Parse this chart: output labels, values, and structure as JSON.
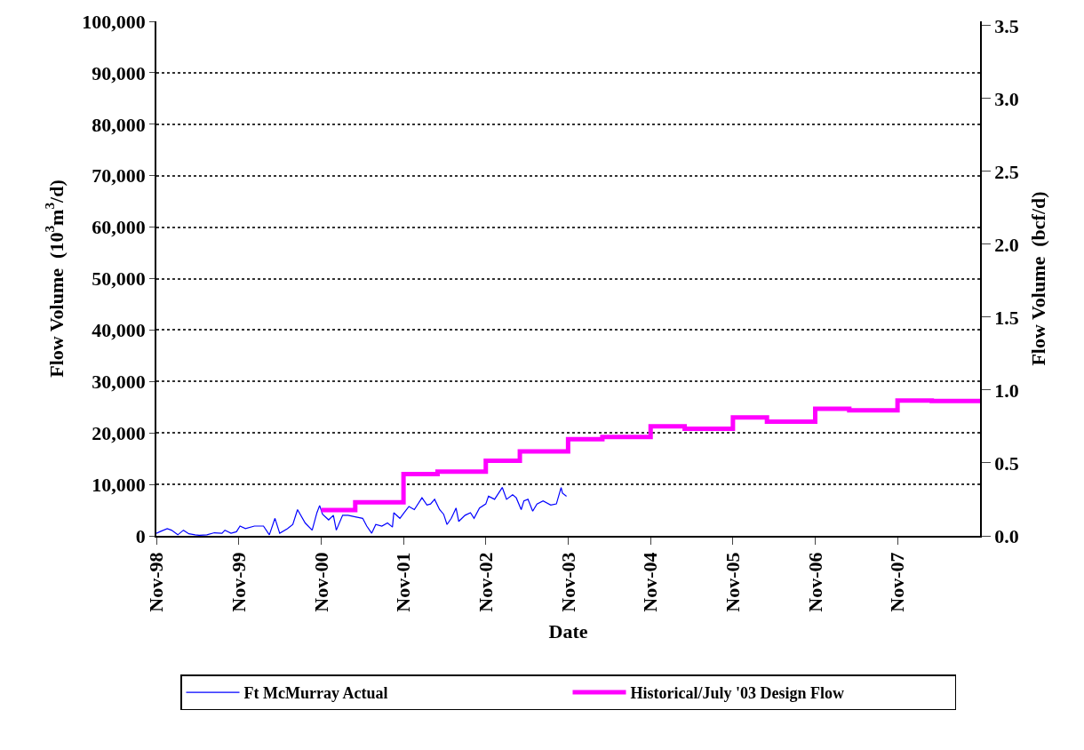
{
  "chart_data": {
    "type": "line",
    "xlabel": "Date",
    "ylabel": "Flow Volume  (10$^{3}$m$^{3}$/d)",
    "y2label": "Flow Volume  (bcf/d)",
    "xlim": [
      "1998-11-01",
      "2008-11-01"
    ],
    "xticks": [
      {
        "value": "1998-11-01",
        "label": "Nov-98"
      },
      {
        "value": "1999-11-01",
        "label": "Nov-99"
      },
      {
        "value": "2000-11-01",
        "label": "Nov-00"
      },
      {
        "value": "2001-11-01",
        "label": "Nov-01"
      },
      {
        "value": "2002-11-01",
        "label": "Nov-02"
      },
      {
        "value": "2003-11-01",
        "label": "Nov-03"
      },
      {
        "value": "2004-11-01",
        "label": "Nov-04"
      },
      {
        "value": "2005-11-01",
        "label": "Nov-05"
      },
      {
        "value": "2006-11-01",
        "label": "Nov-06"
      },
      {
        "value": "2007-11-01",
        "label": "Nov-07"
      }
    ],
    "ylim": [
      0,
      100000
    ],
    "yticks": [
      0,
      {
        "value": 10000,
        "label": "10,000"
      },
      {
        "value": 20000,
        "label": "20,000"
      },
      {
        "value": 30000,
        "label": "30,000"
      },
      {
        "value": 40000,
        "label": "40,000"
      },
      {
        "value": 50000,
        "label": "50,000"
      },
      {
        "value": 60000,
        "label": "60,000"
      },
      {
        "value": 70000,
        "label": "70,000"
      },
      {
        "value": 80000,
        "label": "80,000"
      },
      {
        "value": 90000,
        "label": "90,000"
      },
      {
        "value": 100000,
        "label": "100,000"
      }
    ],
    "y2lim": [
      0,
      3.53
    ],
    "y2ticks": [
      {
        "value": 0,
        "label": "0.0"
      },
      {
        "value": 0.5,
        "label": "0.5"
      },
      {
        "value": 1,
        "label": "1.0"
      },
      {
        "value": 1.5,
        "label": "1.5"
      },
      {
        "value": 2,
        "label": "2.0"
      },
      {
        "value": 2.5,
        "label": "2.5"
      },
      {
        "value": 3,
        "label": "3.0"
      },
      {
        "value": 3.5,
        "label": "3.5"
      }
    ],
    "grid": "y",
    "legend": "bottom",
    "series": [
      {
        "name": "Ft McMurray Actual",
        "color": "#0000ff",
        "x": [
          "1998-11-01",
          "1998-11-16",
          "1998-12-19",
          "1999-01-07",
          "1999-02-04",
          "1999-03-01",
          "1999-03-25",
          "1999-04-22",
          "1999-05-10",
          "1999-06-13",
          "1999-07-16",
          "1999-08-19",
          "1999-09-01",
          "1999-09-28",
          "1999-10-22",
          "1999-11-07",
          "1999-12-01",
          "2000-01-10",
          "2000-02-19",
          "2000-03-16",
          "2000-04-10",
          "2000-05-01",
          "2000-06-04",
          "2000-06-28",
          "2000-07-19",
          "2000-08-22",
          "2000-09-22",
          "2000-10-13",
          "2000-10-25",
          "2000-11-07",
          "2000-12-04",
          "2000-12-25",
          "2001-01-07",
          "2001-02-04",
          "2001-02-28",
          "2001-04-01",
          "2001-05-04",
          "2001-05-22",
          "2001-06-13",
          "2001-07-01",
          "2001-07-28",
          "2001-08-22",
          "2001-09-13",
          "2001-09-19",
          "2001-10-16",
          "2001-11-04",
          "2001-11-25",
          "2001-12-19",
          "2002-01-22",
          "2002-02-13",
          "2002-03-01",
          "2002-03-19",
          "2002-04-10",
          "2002-04-28",
          "2002-05-13",
          "2002-06-01",
          "2002-06-22",
          "2002-07-04",
          "2002-08-01",
          "2002-08-25",
          "2002-09-10",
          "2002-10-04",
          "2002-11-01",
          "2002-11-13",
          "2002-12-10",
          "2003-01-13",
          "2003-02-01",
          "2003-02-28",
          "2003-03-16",
          "2003-04-07",
          "2003-04-19",
          "2003-05-07",
          "2003-05-28",
          "2003-06-16",
          "2003-07-13",
          "2003-08-16",
          "2003-09-10",
          "2003-10-01",
          "2003-10-07",
          "2003-10-25"
        ],
        "values": [
          500,
          800,
          1400,
          1100,
          200,
          1100,
          400,
          200,
          100,
          200,
          600,
          500,
          1100,
          500,
          800,
          1900,
          1400,
          1900,
          1900,
          200,
          3400,
          500,
          1400,
          2200,
          5100,
          2500,
          1100,
          4500,
          5900,
          4200,
          3100,
          4000,
          1100,
          4000,
          4000,
          3700,
          3400,
          1900,
          500,
          2200,
          1900,
          2500,
          1700,
          4500,
          3400,
          4500,
          5700,
          5100,
          7400,
          6000,
          6200,
          7100,
          5100,
          4200,
          2200,
          3400,
          5400,
          2800,
          4000,
          4500,
          3400,
          5400,
          6200,
          7700,
          7100,
          9400,
          7100,
          8000,
          7400,
          5100,
          6800,
          7100,
          4800,
          6200,
          6800,
          6000,
          6200,
          9400,
          8300,
          7700
        ]
      },
      {
        "name": "Historical/July '03 Design Flow",
        "color": "#ff00ff",
        "type": "step",
        "x": [
          "2000-11-01",
          "2001-04-01",
          "2001-11-01",
          "2002-04-01",
          "2002-11-01",
          "2003-04-01",
          "2003-11-01",
          "2004-04-01",
          "2004-11-01",
          "2005-04-01",
          "2005-11-01",
          "2006-04-01",
          "2006-11-01",
          "2007-04-01",
          "2007-11-01",
          "2008-04-01",
          "2008-11-01"
        ],
        "values": [
          5000,
          6500,
          12000,
          12500,
          14600,
          16400,
          18800,
          19200,
          21300,
          20800,
          23000,
          22200,
          24700,
          24400,
          26300,
          26200,
          26200
        ]
      }
    ]
  }
}
